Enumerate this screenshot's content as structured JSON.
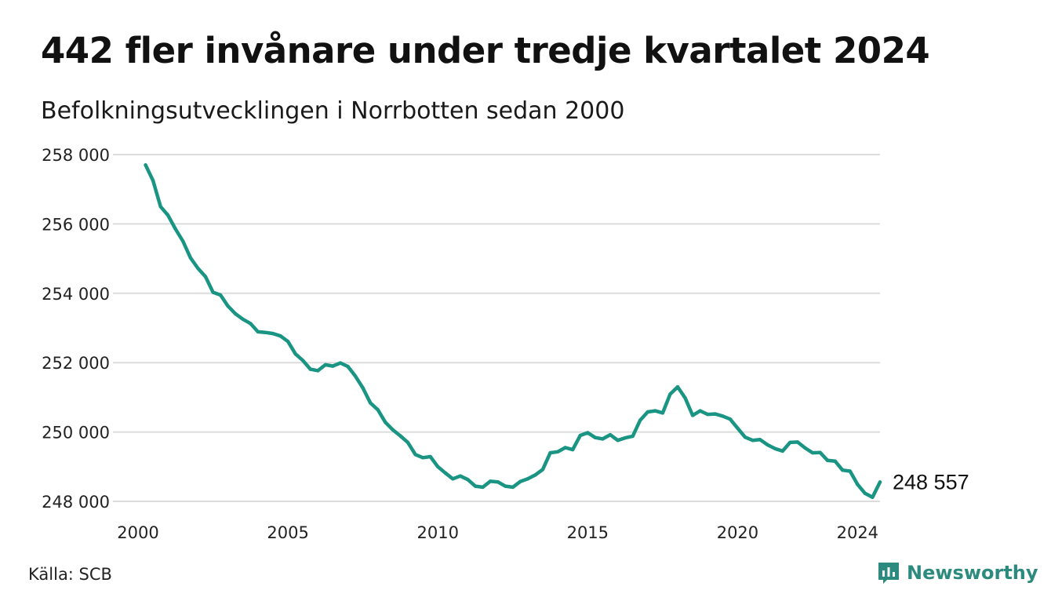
{
  "header": {
    "title": "442 fler invånare under tredje kvartalet 2024",
    "subtitle": "Befolkningsutvecklingen i Norrbotten sedan 2000"
  },
  "footer": {
    "source": "Källa: SCB",
    "brand": "Newsworthy",
    "brand_icon": "newsworthy-logo-icon"
  },
  "colors": {
    "line": "#1a9483",
    "grid": "#dcdcdc",
    "brand": "#2d8a7e"
  },
  "chart_data": {
    "type": "line",
    "title": "442 fler invånare under tredje kvartalet 2024",
    "subtitle": "Befolkningsutvecklingen i Norrbotten sedan 2000",
    "xlabel": "",
    "ylabel": "",
    "xlim": [
      2000,
      2024.75
    ],
    "ylim": [
      248000,
      258000
    ],
    "x_ticks": [
      2000,
      2005,
      2010,
      2015,
      2020,
      2024
    ],
    "x_tick_labels": [
      "2000",
      "2005",
      "2010",
      "2015",
      "2020",
      "2024"
    ],
    "y_ticks": [
      248000,
      250000,
      252000,
      254000,
      256000,
      258000
    ],
    "y_tick_labels": [
      "248 000",
      "250 000",
      "252 000",
      "254 000",
      "256 000",
      "258 000"
    ],
    "grid": "horizontal",
    "last_value_label": "248 557",
    "series": [
      {
        "x": [
          2000.25,
          2000.5,
          2000.75,
          2001.0,
          2001.25,
          2001.5,
          2001.75,
          2002.0,
          2002.25,
          2002.5,
          2002.75,
          2003.0,
          2003.25,
          2003.5,
          2003.75,
          2004.0,
          2004.25,
          2004.5,
          2004.75,
          2005.0,
          2005.25,
          2005.5,
          2005.75,
          2006.0,
          2006.25,
          2006.5,
          2006.75,
          2007.0,
          2007.25,
          2007.5,
          2007.75,
          2008.0,
          2008.25,
          2008.5,
          2008.75,
          2009.0,
          2009.25,
          2009.5,
          2009.75,
          2010.0,
          2010.25,
          2010.5,
          2010.75,
          2011.0,
          2011.25,
          2011.5,
          2011.75,
          2012.0,
          2012.25,
          2012.5,
          2012.75,
          2013.0,
          2013.25,
          2013.5,
          2013.75,
          2014.0,
          2014.25,
          2014.5,
          2014.75,
          2015.0,
          2015.25,
          2015.5,
          2015.75,
          2016.0,
          2016.25,
          2016.5,
          2016.75,
          2017.0,
          2017.25,
          2017.5,
          2017.75,
          2018.0,
          2018.25,
          2018.5,
          2018.75,
          2019.0,
          2019.25,
          2019.5,
          2019.75,
          2020.0,
          2020.25,
          2020.5,
          2020.75,
          2021.0,
          2021.25,
          2021.5,
          2021.75,
          2022.0,
          2022.25,
          2022.5,
          2022.75,
          2023.0,
          2023.25,
          2023.5,
          2023.75,
          2024.0,
          2024.25,
          2024.5,
          2024.75
        ],
        "values": [
          257700,
          257250,
          256500,
          256250,
          255850,
          255500,
          255020,
          254720,
          254480,
          254030,
          253950,
          253630,
          253410,
          253250,
          253130,
          252890,
          252870,
          252840,
          252770,
          252610,
          252250,
          252060,
          251810,
          251770,
          251940,
          251900,
          251990,
          251890,
          251610,
          251270,
          250840,
          250640,
          250280,
          250060,
          249890,
          249700,
          249350,
          249260,
          249290,
          249000,
          248820,
          248650,
          248730,
          248630,
          248440,
          248410,
          248580,
          248560,
          248440,
          248410,
          248570,
          248650,
          248760,
          248920,
          249400,
          249430,
          249550,
          249490,
          249900,
          249980,
          249840,
          249800,
          249920,
          249760,
          249830,
          249880,
          250340,
          250580,
          250610,
          250550,
          251090,
          251300,
          250980,
          250480,
          250610,
          250510,
          250520,
          250460,
          250370,
          250110,
          249850,
          249760,
          249780,
          249630,
          249520,
          249450,
          249700,
          249710,
          249540,
          249400,
          249410,
          249180,
          249160,
          248900,
          248870,
          248490,
          248230,
          248120,
          248557
        ]
      }
    ]
  }
}
